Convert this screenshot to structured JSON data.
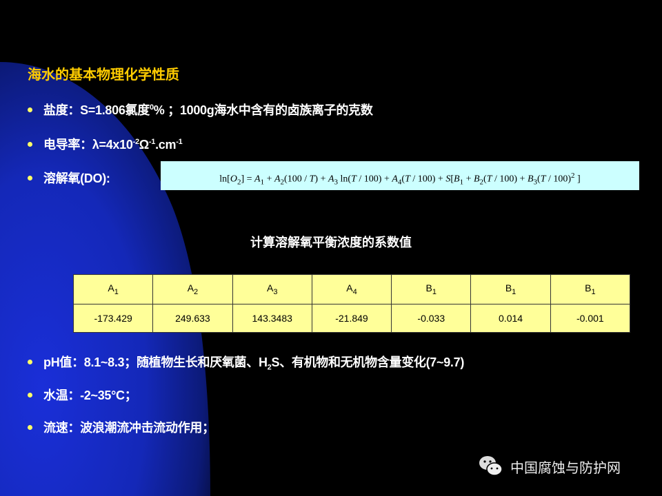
{
  "title": "海水的基本物理化学性质",
  "bullets": {
    "salinity": {
      "label": "盐度：S=1.806氯度",
      "sup": "0",
      "rest": "%  ；1000g海水中含有的卤族离子的克数"
    },
    "conductivity": {
      "label": "电导率：λ=4x10",
      "sup1": "-2",
      "omega": "Ω",
      "sup2": "-1",
      "cm": ".cm",
      "sup3": "-1"
    },
    "do": {
      "label": "溶解氧(DO):"
    },
    "ph": {
      "label": "pH值：8.1~8.3；随植物生长和厌氧菌、H",
      "sub": "2",
      "rest": "S、有机物和无机物含量变化(7~9.7)"
    },
    "temp": {
      "label": "水温：-2~35°C；"
    },
    "flow": {
      "label": "流速：波浪潮流冲击流动作用；"
    }
  },
  "formula": {
    "p1": "ln[",
    "O": "O",
    "s2": "2",
    "p2": "] = ",
    "A": "A",
    "s1": "1",
    "p3": " + ",
    "p4": "(100 / ",
    "T": "T",
    "p5": ") + ",
    "s3": "3",
    "p6": " ln(",
    "p7": " / 100) + ",
    "s4": "4",
    "p8": "(",
    "S": "S",
    "p9": "[",
    "B": "B",
    "p10": " / 100)",
    "sq": "2",
    "p11": " ]"
  },
  "table": {
    "caption": "计算溶解氧平衡浓度的系数值",
    "headers": [
      {
        "l": "A",
        "s": "1"
      },
      {
        "l": "A",
        "s": "2"
      },
      {
        "l": "A",
        "s": "3"
      },
      {
        "l": "A",
        "s": "4"
      },
      {
        "l": "B",
        "s": "1"
      },
      {
        "l": "B",
        "s": "1"
      },
      {
        "l": "B",
        "s": "1"
      }
    ],
    "values": [
      "-173.429",
      "249.633",
      "143.3483",
      "-21.849",
      "-0.033",
      "0.014",
      "-0.001"
    ]
  },
  "watermark": {
    "text": "中国腐蚀与防护网",
    "icon": "wechat-icon"
  },
  "colors": {
    "title": "#ffcc00",
    "bullet": "#ffff66",
    "formula_bg": "#ccffff",
    "table_bg": "#ffff99",
    "blue": "#1428b8"
  }
}
